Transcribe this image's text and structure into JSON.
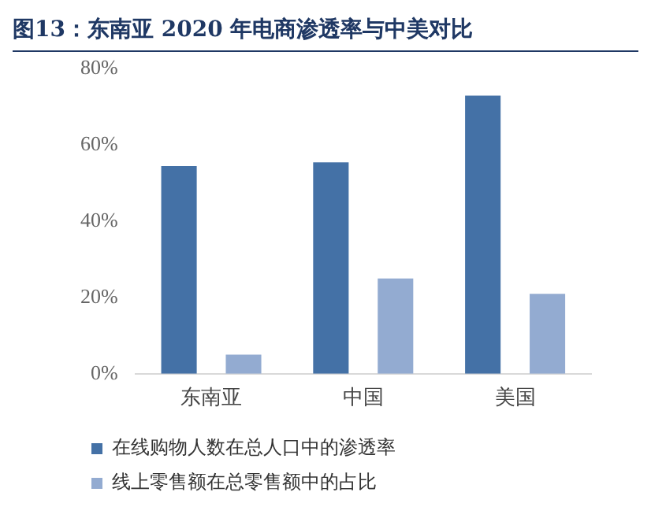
{
  "chart_data": {
    "type": "bar",
    "title": "图13：东南亚 2020 年电商渗透率与中美对比",
    "categories": [
      "东南亚",
      "中国",
      "美国"
    ],
    "series": [
      {
        "name": "在线购物人数在总人口中的渗透率",
        "color": "#4471a6",
        "values": [
          54.5,
          55.5,
          73
        ]
      },
      {
        "name": "线上零售额在总零售额中的占比",
        "color": "#93abd1",
        "values": [
          5,
          25,
          21
        ]
      }
    ],
    "ylim": [
      0,
      80
    ],
    "yticks": [
      {
        "value": 0,
        "label": "0%"
      },
      {
        "value": 20,
        "label": "20%"
      },
      {
        "value": 40,
        "label": "40%"
      },
      {
        "value": 60,
        "label": "60%"
      },
      {
        "value": 80,
        "label": "80%"
      }
    ],
    "grid": false,
    "legend": "bottom"
  }
}
